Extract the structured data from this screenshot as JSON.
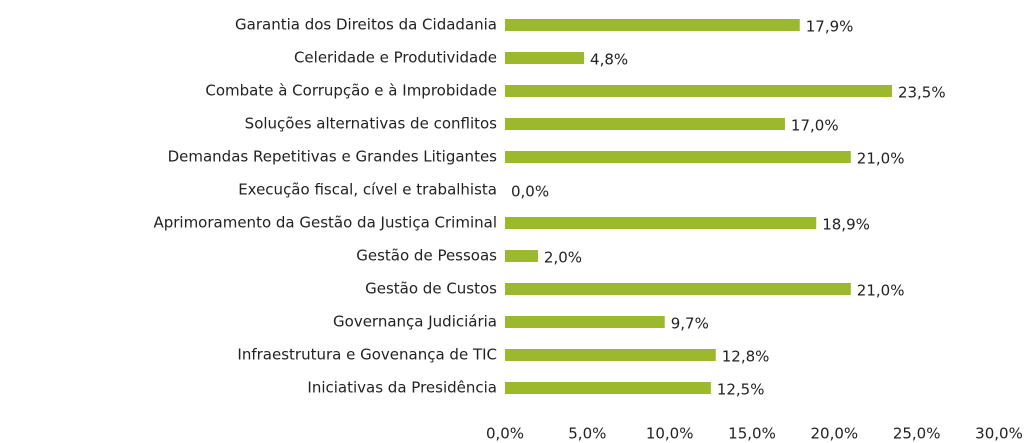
{
  "chart_data": {
    "type": "bar",
    "orientation": "horizontal",
    "categories": [
      "Garantia dos Direitos da Cidadania",
      "Celeridade e Produtividade",
      "Combate à Corrupção e à Improbidade",
      "Soluções alternativas de conflitos",
      "Demandas Repetitivas e Grandes Litigantes",
      "Execução fiscal, cível e trabalhista",
      "Aprimoramento da Gestão da Justiça Criminal",
      "Gestão de Pessoas",
      "Gestão de Custos",
      "Governança Judiciária",
      "Infraestrutura e Govenança de TIC",
      "Iniciativas da Presidência"
    ],
    "values": [
      17.9,
      4.8,
      23.5,
      17.0,
      21.0,
      0.0,
      18.9,
      2.0,
      21.0,
      9.7,
      12.8,
      12.5
    ],
    "value_labels": [
      "17,9%",
      "4,8%",
      "23,5%",
      "17,0%",
      "21,0%",
      "0,0%",
      "18,9%",
      "2,0%",
      "21,0%",
      "9,7%",
      "12,8%",
      "12,5%"
    ],
    "color": "#9cb82c",
    "xlim": [
      0,
      30
    ],
    "xticks": [
      {
        "value": 0,
        "label": "0,0%"
      },
      {
        "value": 5,
        "label": "5,0%"
      },
      {
        "value": 10,
        "label": "10,0%"
      },
      {
        "value": 15,
        "label": "15,0%"
      },
      {
        "value": 20,
        "label": "20,0%"
      },
      {
        "value": 25,
        "label": "25,0%"
      },
      {
        "value": 30,
        "label": "30,0%"
      }
    ],
    "grid": false
  }
}
